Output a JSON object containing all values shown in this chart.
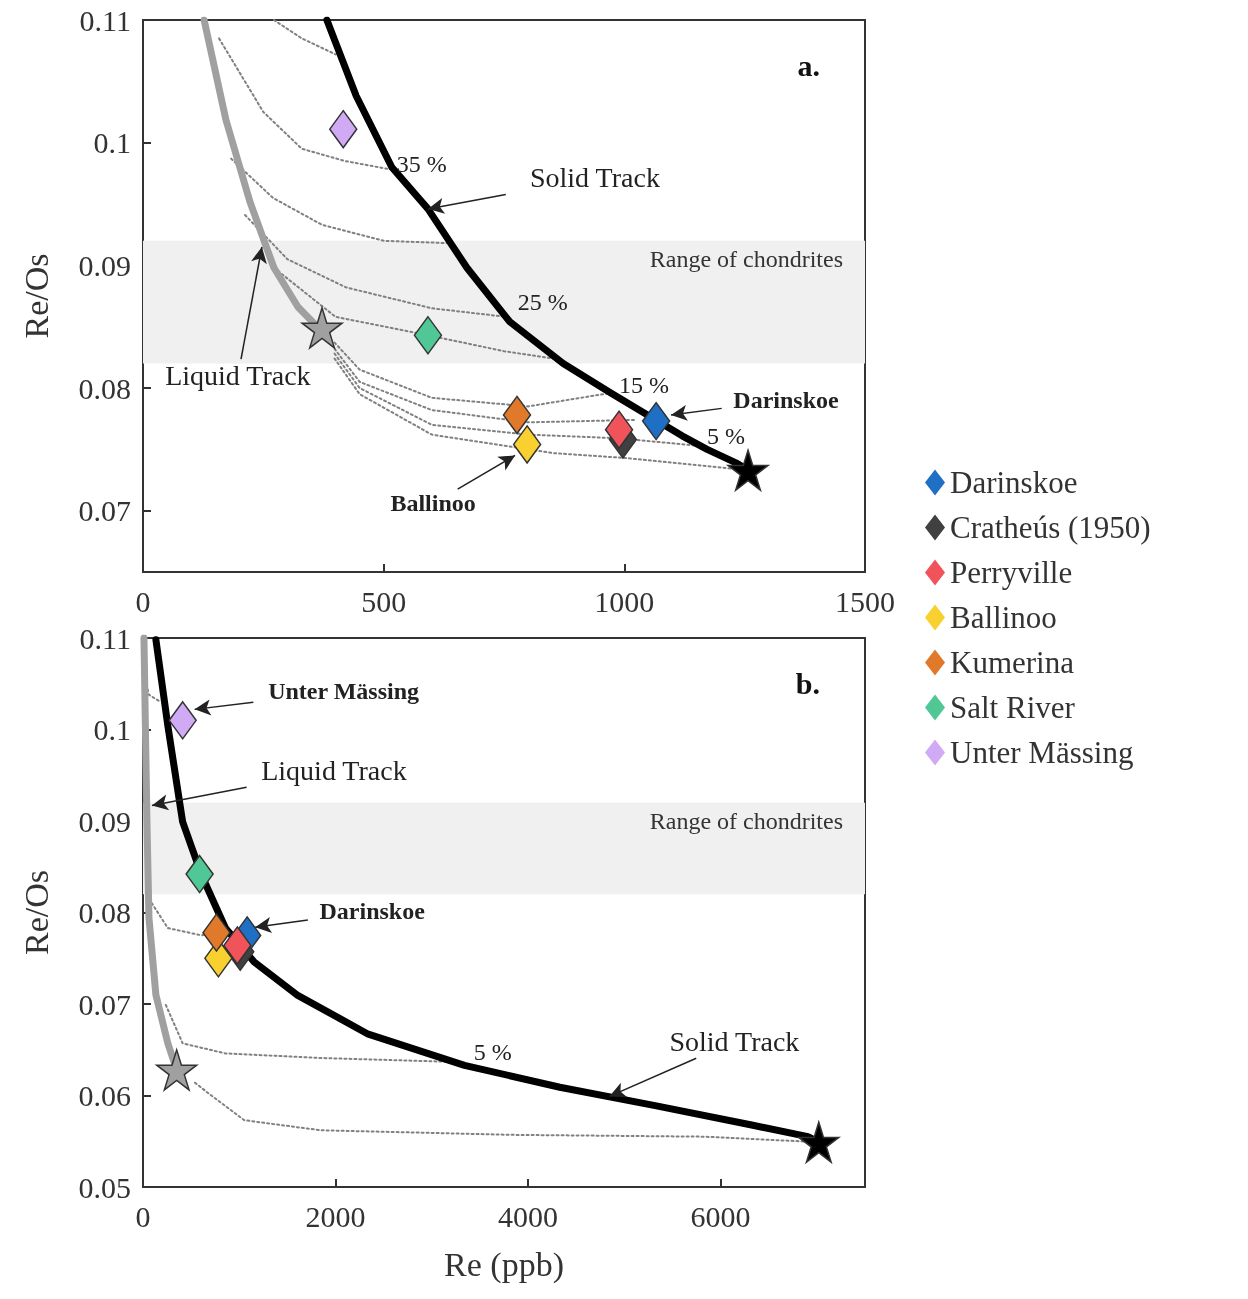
{
  "chart_data": [
    {
      "type": "scatter",
      "title": "a.",
      "ylabel": "Re/Os",
      "xlim": [
        0,
        1500
      ],
      "xticks": [
        0,
        500,
        1000,
        1500
      ],
      "ylim": [
        0.065,
        0.11
      ],
      "yticks": [
        0.07,
        0.08,
        0.09,
        0.1,
        0.11
      ],
      "grid": false,
      "legend": "right",
      "marker": "diamond",
      "bands": [
        {
          "axis": "y",
          "from": 0.082,
          "to": 0.092,
          "label": "Range of chondrites",
          "color": "#f0f0f0"
        }
      ],
      "annotations": [
        {
          "text": "35 %",
          "x": 517,
          "y": 0.0978
        },
        {
          "text": "Solid Track",
          "x": 592,
          "y": 0.0946
        },
        {
          "text": "25 %",
          "x": 762,
          "y": 0.0856
        },
        {
          "text": "Liquid Track",
          "x": 247,
          "y": 0.0915
        },
        {
          "text": "15 %",
          "x": 962,
          "y": 0.0794
        },
        {
          "text": "Darinskoe",
          "x": 1097,
          "y": 0.0778
        },
        {
          "text": "5 %",
          "x": 1151,
          "y": 0.0753
        },
        {
          "text": "Ballinoo",
          "x": 773,
          "y": 0.0745
        }
      ],
      "series": [
        {
          "type": "line",
          "line_style": "dotted",
          "color": "#808080",
          "marker": "none",
          "x": [
            272,
            330,
            400
          ],
          "values": [
            0.11,
            0.1085,
            0.1072
          ]
        },
        {
          "type": "line",
          "line_style": "dotted",
          "color": "#808080",
          "marker": "none",
          "x": [
            158,
            250,
            330,
            420,
            517
          ],
          "values": [
            0.1085,
            0.1025,
            0.0995,
            0.0985,
            0.0978
          ]
        },
        {
          "type": "line",
          "line_style": "dotted",
          "color": "#808080",
          "marker": "none",
          "x": [
            183,
            270,
            372,
            500,
            640
          ],
          "values": [
            0.0987,
            0.0955,
            0.0933,
            0.092,
            0.0918
          ]
        },
        {
          "type": "line",
          "line_style": "dotted",
          "color": "#808080",
          "marker": "none",
          "x": [
            212,
            300,
            422,
            600,
            755
          ],
          "values": [
            0.0941,
            0.0905,
            0.0882,
            0.0865,
            0.0858
          ]
        },
        {
          "type": "line",
          "line_style": "dotted",
          "color": "#808080",
          "marker": "none",
          "x": [
            272,
            400,
            592,
            750,
            852
          ],
          "values": [
            0.0898,
            0.0858,
            0.0843,
            0.083,
            0.0824
          ]
        },
        {
          "type": "line",
          "line_style": "dotted",
          "color": "#808080",
          "marker": "none",
          "x": [
            398,
            450,
            600,
            800,
            972
          ],
          "values": [
            0.0837,
            0.0815,
            0.0792,
            0.0785,
            0.0796
          ]
        },
        {
          "type": "line",
          "line_style": "dotted",
          "color": "#808080",
          "marker": "none",
          "x": [
            398,
            450,
            600,
            800,
            1025
          ],
          "values": [
            0.0832,
            0.0805,
            0.0782,
            0.0772,
            0.0774
          ]
        },
        {
          "type": "line",
          "line_style": "dotted",
          "color": "#808080",
          "marker": "none",
          "x": [
            398,
            450,
            600,
            800,
            989,
            1151
          ],
          "values": [
            0.0828,
            0.08,
            0.077,
            0.0762,
            0.0759,
            0.0753
          ]
        },
        {
          "type": "line",
          "line_style": "dotted",
          "color": "#808080",
          "marker": "none",
          "x": [
            398,
            450,
            600,
            850,
            1000,
            1257
          ],
          "values": [
            0.0824,
            0.0795,
            0.0762,
            0.0747,
            0.0743,
            0.0733
          ]
        },
        {
          "type": "line",
          "line_style": "solid",
          "color": "#a0a0a0",
          "marker": "none",
          "x": [
            127,
            172,
            222,
            272,
            322,
            357,
            372
          ],
          "values": [
            0.11,
            0.1019,
            0.0952,
            0.0898,
            0.0866,
            0.0852,
            0.0849
          ]
        },
        {
          "type": "line",
          "line_style": "solid",
          "color": "#000000",
          "marker": "none",
          "x": [
            382,
            443,
            517,
            592,
            673,
            762,
            873,
            972,
            1120,
            1172,
            1232,
            1257
          ],
          "values": [
            0.11,
            0.1038,
            0.098,
            0.0946,
            0.0898,
            0.0854,
            0.082,
            0.0796,
            0.0761,
            0.075,
            0.0739,
            0.0733
          ]
        },
        {
          "type": "scatter",
          "marker": "star",
          "color": "#a0a0a0",
          "x": [
            372
          ],
          "values": [
            0.0849
          ]
        },
        {
          "type": "scatter",
          "marker": "star",
          "color": "#000000",
          "x": [
            1257
          ],
          "values": [
            0.0733
          ]
        },
        {
          "name": "Darinskoe",
          "color": "#1f6fc5",
          "x": [
            1066
          ],
          "values": [
            0.0773
          ]
        },
        {
          "name": "Cratheús (1950)",
          "color": "#404040",
          "x": [
            997
          ],
          "values": [
            0.0758
          ]
        },
        {
          "name": "Perryville",
          "color": "#f0545a",
          "x": [
            989
          ],
          "values": [
            0.0766
          ]
        },
        {
          "name": "Ballinoo",
          "color": "#f8d030",
          "x": [
            798
          ],
          "values": [
            0.0754
          ]
        },
        {
          "name": "Kumerina",
          "color": "#e07a2a",
          "x": [
            777
          ],
          "values": [
            0.0778
          ]
        },
        {
          "name": "Salt River",
          "color": "#50c896",
          "x": [
            592
          ],
          "values": [
            0.0843
          ]
        },
        {
          "name": "Unter Mässing",
          "color": "#d0aaf5",
          "x": [
            416
          ],
          "values": [
            0.1011
          ]
        }
      ]
    },
    {
      "type": "scatter",
      "title": "b.",
      "xlabel": "Re (ppb)",
      "ylabel": "Re/Os",
      "xlim": [
        0,
        7500
      ],
      "xticks": [
        0,
        2000,
        4000,
        6000
      ],
      "ylim": [
        0.05,
        0.11
      ],
      "yticks": [
        0.05,
        0.06,
        0.07,
        0.08,
        0.09,
        0.1,
        0.11
      ],
      "grid": false,
      "marker": "diamond",
      "bands": [
        {
          "axis": "y",
          "from": 0.082,
          "to": 0.092,
          "label": "Range of chondrites",
          "color": "#f0f0f0"
        }
      ],
      "annotations": [
        {
          "text": "Unter Mässing",
          "x": 536,
          "y": 0.1022
        },
        {
          "text": "Liquid Track",
          "x": 93,
          "y": 0.0917
        },
        {
          "text": "Darinskoe",
          "x": 1165,
          "y": 0.0784
        },
        {
          "text": "5 %",
          "x": 3134,
          "y": 0.0637
        },
        {
          "text": "Solid Track",
          "x": 4845,
          "y": 0.0599
        }
      ],
      "series": [
        {
          "type": "line",
          "line_style": "dotted",
          "color": "#808080",
          "marker": "none",
          "x": [
            15,
            60,
            186
          ],
          "values": [
            0.106,
            0.1038,
            0.103
          ]
        },
        {
          "type": "line",
          "line_style": "dotted",
          "color": "#808080",
          "marker": "none",
          "x": [
            62,
            258,
            608,
            856
          ],
          "values": [
            0.0815,
            0.0783,
            0.0775,
            0.0783
          ]
        },
        {
          "type": "line",
          "line_style": "dotted",
          "color": "#808080",
          "marker": "none",
          "x": [
            237,
            412,
            856,
            1845,
            3134
          ],
          "values": [
            0.0699,
            0.0657,
            0.0646,
            0.0641,
            0.0637
          ]
        },
        {
          "type": "line",
          "line_style": "dotted",
          "color": "#808080",
          "marker": "none",
          "x": [
            540,
            660,
            1052,
            1845,
            3835,
            5830,
            7020
          ],
          "values": [
            0.0614,
            0.0604,
            0.0573,
            0.0562,
            0.0557,
            0.0555,
            0.0549
          ]
        },
        {
          "type": "line",
          "line_style": "solid",
          "color": "#a0a0a0",
          "marker": "none",
          "x": [
            10,
            41,
            62,
            134,
            258,
            350
          ],
          "values": [
            0.11,
            0.0899,
            0.0794,
            0.071,
            0.0657,
            0.0628
          ]
        },
        {
          "type": "line",
          "line_style": "solid",
          "color": "#000000",
          "marker": "none",
          "x": [
            134,
            258,
            412,
            608,
            856,
            1155,
            1598,
            2340,
            3340,
            4330,
            5320,
            6310,
            6907,
            7020
          ],
          "values": [
            0.1098,
            0.1004,
            0.0899,
            0.0841,
            0.0783,
            0.0746,
            0.071,
            0.0667,
            0.0633,
            0.0609,
            0.0589,
            0.0568,
            0.0555,
            0.0549
          ]
        },
        {
          "type": "scatter",
          "marker": "star",
          "color": "#a0a0a0",
          "x": [
            350
          ],
          "values": [
            0.0628
          ]
        },
        {
          "type": "scatter",
          "marker": "star",
          "color": "#000000",
          "x": [
            7020
          ],
          "values": [
            0.0549
          ]
        },
        {
          "color": "#1f6fc5",
          "x": [
            1082
          ],
          "values": [
            0.0775
          ]
        },
        {
          "color": "#404040",
          "x": [
            1010
          ],
          "values": [
            0.0757
          ]
        },
        {
          "color": "#f0545a",
          "x": [
            980
          ],
          "values": [
            0.0764
          ]
        },
        {
          "color": "#f8d030",
          "x": [
            783
          ],
          "values": [
            0.075
          ]
        },
        {
          "color": "#e07a2a",
          "x": [
            763
          ],
          "values": [
            0.0778
          ]
        },
        {
          "color": "#50c896",
          "x": [
            588
          ],
          "values": [
            0.0842
          ]
        },
        {
          "color": "#d0aaf5",
          "x": [
            412
          ],
          "values": [
            0.101
          ]
        }
      ]
    }
  ]
}
